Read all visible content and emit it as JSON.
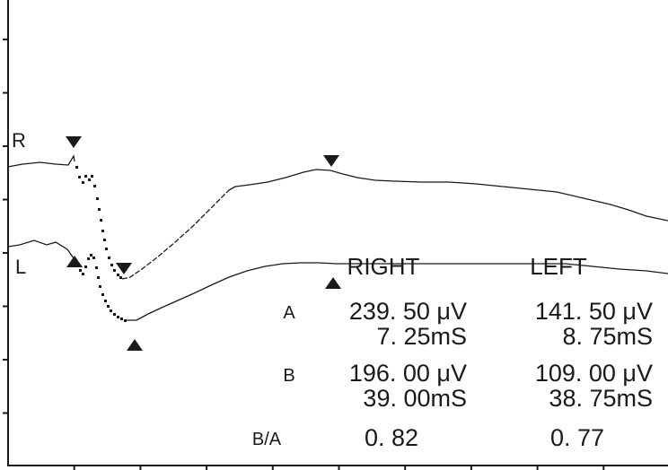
{
  "chart_data": {
    "type": "line",
    "title": "",
    "xlabel": "",
    "ylabel": "",
    "grid": false,
    "series": [
      {
        "name": "R"
      },
      {
        "name": "L"
      }
    ],
    "columns": {
      "right": "RIGHT",
      "left": "LEFT"
    },
    "rows": [
      {
        "label": "A",
        "right_amp": "239. 50 μV",
        "right_time": "7. 25mS",
        "left_amp": "141. 50 μV",
        "left_time": "8. 75mS"
      },
      {
        "label": "B",
        "right_amp": "196. 00 μV",
        "right_time": "39. 00mS",
        "left_amp": "109. 00 μV",
        "left_time": "38. 75mS"
      },
      {
        "label": "B/A",
        "right_ratio": "0. 82",
        "left_ratio": "0. 77"
      }
    ]
  },
  "colors": {
    "trace": "#1a1a1a",
    "axis": "#1a1a1a",
    "background": "#ffffff"
  },
  "markers": {
    "down": "down-triangle-marker",
    "up": "up-triangle-marker"
  }
}
